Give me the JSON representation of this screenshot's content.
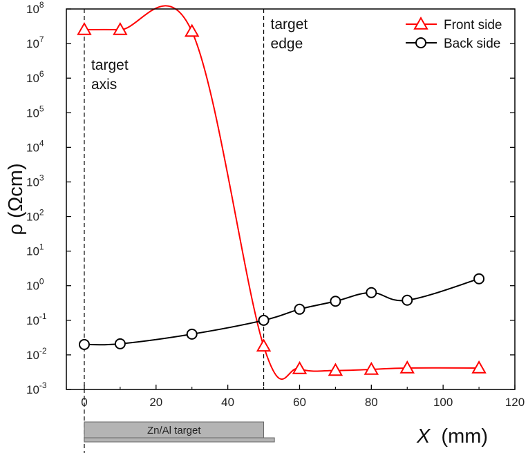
{
  "chart_data": {
    "type": "line",
    "xlabel_symbol": "X",
    "xlabel_unit": "(mm)",
    "ylabel": "ρ (Ωcm)",
    "yscale": "log",
    "xlim": [
      -5,
      120
    ],
    "ylim_exponent": [
      -3,
      8
    ],
    "xticks": [
      "0",
      "20",
      "40",
      "60",
      "80",
      "100",
      "120"
    ],
    "yticks": [
      {
        "base": "10",
        "exp": "-3"
      },
      {
        "base": "10",
        "exp": "-2"
      },
      {
        "base": "10",
        "exp": "-1"
      },
      {
        "base": "10",
        "exp": "0"
      },
      {
        "base": "10",
        "exp": "1"
      },
      {
        "base": "10",
        "exp": "2"
      },
      {
        "base": "10",
        "exp": "3"
      },
      {
        "base": "10",
        "exp": "4"
      },
      {
        "base": "10",
        "exp": "5"
      },
      {
        "base": "10",
        "exp": "6"
      },
      {
        "base": "10",
        "exp": "7"
      },
      {
        "base": "10",
        "exp": "8"
      }
    ],
    "series": [
      {
        "name": "Front side",
        "color": "#ff0000",
        "marker": "triangle",
        "x": [
          0,
          10,
          30,
          50,
          60,
          70,
          80,
          90,
          110
        ],
        "log10_y": [
          7.4,
          7.4,
          7.35,
          -1.75,
          -2.4,
          -2.45,
          -2.42,
          -2.38,
          -2.38
        ]
      },
      {
        "name": "Back side",
        "color": "#000000",
        "marker": "circle",
        "x": [
          0,
          10,
          30,
          50,
          60,
          70,
          80,
          90,
          110
        ],
        "log10_y": [
          -1.7,
          -1.68,
          -1.4,
          -1.0,
          -0.68,
          -0.45,
          -0.2,
          -0.42,
          0.2
        ]
      }
    ],
    "annotations": [
      {
        "lines": [
          "target",
          "axis"
        ],
        "x": 0
      },
      {
        "lines": [
          "target",
          "edge"
        ],
        "x": 50
      }
    ],
    "target_label": "Zn/Al target",
    "colors": {
      "bar_fill": "#b4b4b4",
      "bar_stroke": "#666666"
    }
  }
}
